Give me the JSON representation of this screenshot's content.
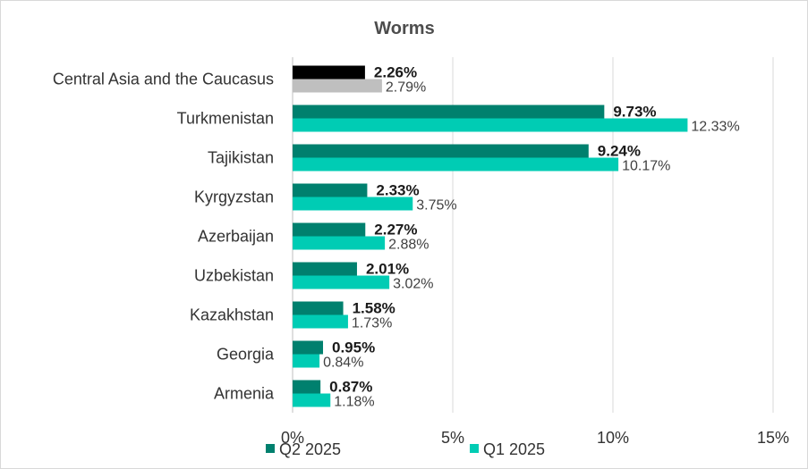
{
  "chart_data": {
    "type": "bar",
    "orientation": "horizontal",
    "title": "Worms",
    "categories": [
      "Central Asia and the Caucasus",
      "Turkmenistan",
      "Tajikistan",
      "Kyrgyzstan",
      "Azerbaijan",
      "Uzbekistan",
      "Kazakhstan",
      "Georgia",
      "Armenia"
    ],
    "series": [
      {
        "name": "Q2 2025",
        "color": "#00806e",
        "first_category_color": "#000000",
        "values": [
          2.26,
          9.73,
          9.24,
          2.33,
          2.27,
          2.01,
          1.58,
          0.95,
          0.87
        ],
        "labels": [
          "2.26%",
          "9.73%",
          "9.24%",
          "2.33%",
          "2.27%",
          "2.01%",
          "1.58%",
          "0.95%",
          "0.87%"
        ]
      },
      {
        "name": "Q1 2025",
        "color": "#00ccb4",
        "first_category_color": "#bfbfbf",
        "values": [
          2.79,
          12.33,
          10.17,
          3.75,
          2.88,
          3.02,
          1.73,
          0.84,
          1.18
        ],
        "labels": [
          "2.79%",
          "12.33%",
          "10.17%",
          "3.75%",
          "2.88%",
          "3.02%",
          "1.73%",
          "0.84%",
          "1.18%"
        ]
      }
    ],
    "xlim": [
      0,
      15
    ],
    "x_ticks": [
      0,
      5,
      10,
      15
    ],
    "x_tick_labels": [
      "0%",
      "5%",
      "10%",
      "15%"
    ],
    "grid": "vertical",
    "legend_position": "bottom"
  }
}
